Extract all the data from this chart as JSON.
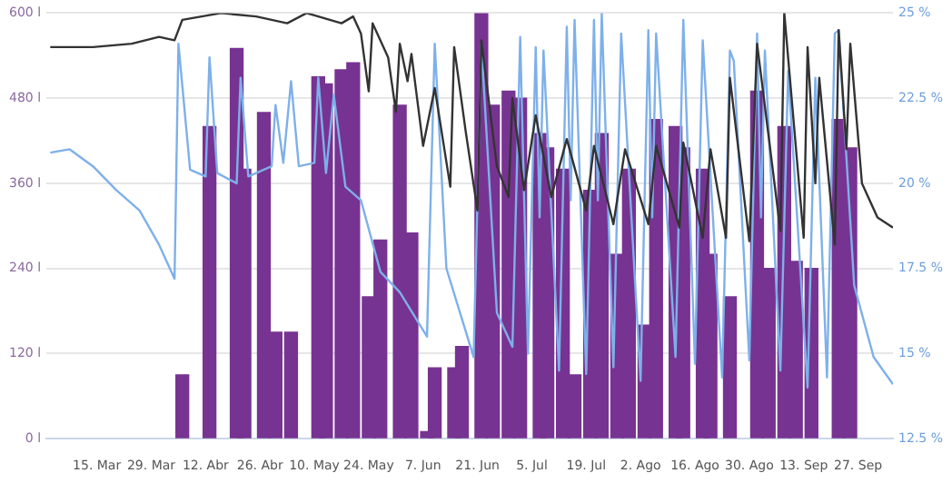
{
  "chart_data": {
    "type": "bar",
    "xlim": [
      "--03-02",
      "--10-06"
    ],
    "xticks": [
      {
        "value": "--03-15",
        "label": "15. Mar"
      },
      {
        "value": "--03-29",
        "label": "29. Mar"
      },
      {
        "value": "--04-12",
        "label": "12. Abr"
      },
      {
        "value": "--04-26",
        "label": "26. Abr"
      },
      {
        "value": "--05-10",
        "label": "10. May"
      },
      {
        "value": "--05-24",
        "label": "24. May"
      },
      {
        "value": "--06-07",
        "label": "7. Jun"
      },
      {
        "value": "--06-21",
        "label": "21. Jun"
      },
      {
        "value": "--07-05",
        "label": "5. Jul"
      },
      {
        "value": "--07-19",
        "label": "19. Jul"
      },
      {
        "value": "--08-02",
        "label": "2. Ago"
      },
      {
        "value": "--08-16",
        "label": "16. Ago"
      },
      {
        "value": "--08-30",
        "label": "30. Ago"
      },
      {
        "value": "--09-13",
        "label": "13. Sep"
      },
      {
        "value": "--09-27",
        "label": "27. Sep"
      }
    ],
    "ylim": [
      0,
      600
    ],
    "yticks": [
      {
        "value": 0,
        "label": "0 l"
      },
      {
        "value": 120,
        "label": "120 l"
      },
      {
        "value": 240,
        "label": "240 l"
      },
      {
        "value": 360,
        "label": "360 l"
      },
      {
        "value": 480,
        "label": "480 l"
      },
      {
        "value": 600,
        "label": "600 l"
      }
    ],
    "y2lim": [
      12.5,
      25
    ],
    "y2ticks": [
      {
        "value": 12.5,
        "label": "12.5 %"
      },
      {
        "value": 15,
        "label": "15 %"
      },
      {
        "value": 17.5,
        "label": "17.5 %"
      },
      {
        "value": 20,
        "label": "20 %"
      },
      {
        "value": 22.5,
        "label": "22.5 %"
      },
      {
        "value": 25,
        "label": "25 %"
      }
    ],
    "grid": "y",
    "legend": false,
    "marker": "none",
    "line_style": "solid",
    "series": [
      {
        "color": "#773391",
        "x": [
          "--04-06",
          "--04-13",
          "--04-20",
          "--04-22",
          "--04-27",
          "--04-30",
          "--05-04",
          "--05-11",
          "--05-13",
          "--05-17",
          "--05-20",
          "--05-24",
          "--05-27",
          "--06-01",
          "--06-04",
          "--06-08",
          "--06-10",
          "--06-15",
          "--06-17",
          "--06-22",
          "--06-25",
          "--06-29",
          "--07-02",
          "--07-07",
          "--07-09",
          "--07-13",
          "--07-16",
          "--07-20",
          "--07-23",
          "--07-27",
          "--07-30",
          "--08-03",
          "--08-06",
          "--08-11",
          "--08-13",
          "--08-18",
          "--08-20",
          "--08-25",
          "--09-01",
          "--09-04",
          "--09-08",
          "--09-11",
          "--09-15",
          "--09-22",
          "--09-25"
        ],
        "values": [
          90,
          440,
          550,
          380,
          460,
          150,
          150,
          510,
          500,
          520,
          530,
          200,
          280,
          470,
          290,
          10,
          100,
          100,
          130,
          600,
          470,
          490,
          480,
          430,
          410,
          380,
          90,
          350,
          430,
          260,
          380,
          160,
          450,
          440,
          410,
          380,
          260,
          200,
          490,
          240,
          440,
          250,
          240,
          450,
          410
        ]
      },
      {
        "type": "line",
        "axis": "y2",
        "color": "#333333",
        "x": [
          "--03-03",
          "--03-14",
          "--03-24",
          "--03-31",
          "--04-04",
          "--04-06",
          "--04-16",
          "--04-25",
          "--05-03",
          "--05-08",
          "--05-17",
          "--05-20",
          "--05-22",
          "--05-24",
          "--05-25",
          "--05-29",
          "--05-31",
          "--06-01",
          "--06-03",
          "--06-04",
          "--06-07",
          "--06-10",
          "--06-14",
          "--06-15",
          "--06-18",
          "--06-21",
          "--06-22",
          "--06-26",
          "--06-29",
          "--06-30",
          "--07-03",
          "--07-06",
          "--07-10",
          "--07-14",
          "--07-19",
          "--07-21",
          "--07-26",
          "--07-29",
          "--08-04",
          "--08-06",
          "--08-12",
          "--08-13",
          "--08-18",
          "--08-20",
          "--08-24",
          "--08-25",
          "--08-30",
          "--09-01",
          "--09-07",
          "--09-08",
          "--09-13",
          "--09-14",
          "--09-16",
          "--09-17",
          "--09-21",
          "--09-22",
          "--09-24",
          "--09-25",
          "--09-28",
          "--10-02",
          "--10-06"
        ],
        "values": [
          24.0,
          24.0,
          24.1,
          24.3,
          24.2,
          24.8,
          25.0,
          24.9,
          24.7,
          25.0,
          24.7,
          24.9,
          24.4,
          22.7,
          24.7,
          23.7,
          22.1,
          24.1,
          23.0,
          23.8,
          21.1,
          22.8,
          19.9,
          24.0,
          21.5,
          19.2,
          24.2,
          20.5,
          19.6,
          22.5,
          19.8,
          22.0,
          19.6,
          21.3,
          19.2,
          21.1,
          18.8,
          21.0,
          18.8,
          21.1,
          18.7,
          21.2,
          18.4,
          21.0,
          18.4,
          23.1,
          18.3,
          24.1,
          18.6,
          25.0,
          18.4,
          24.0,
          20.0,
          23.1,
          18.2,
          24.5,
          21.0,
          24.1,
          20.0,
          19.0,
          18.7
        ]
      },
      {
        "type": "line",
        "axis": "y2",
        "color": "#7eb0ea",
        "x": [
          "--03-03",
          "--03-08",
          "--03-14",
          "--03-20",
          "--03-26",
          "--03-31",
          "--04-04",
          "--04-05",
          "--04-08",
          "--04-12",
          "--04-13",
          "--04-15",
          "--04-20",
          "--04-21",
          "--04-23",
          "--04-29",
          "--04-30",
          "--05-02",
          "--05-04",
          "--05-06",
          "--05-10",
          "--05-11",
          "--05-13",
          "--05-15",
          "--05-18",
          "--05-22",
          "--05-27",
          "--06-01",
          "--06-08",
          "--06-10",
          "--06-13",
          "--06-20",
          "--06-22",
          "--06-26",
          "--06-30",
          "--07-02",
          "--07-04",
          "--07-06",
          "--07-07",
          "--07-08",
          "--07-12",
          "--07-14",
          "--07-15",
          "--07-16",
          "--07-19",
          "--07-21",
          "--07-22",
          "--07-23",
          "--07-26",
          "--07-28",
          "--08-02",
          "--08-04",
          "--08-05",
          "--08-06",
          "--08-11",
          "--08-13",
          "--08-16",
          "--08-18",
          "--08-23",
          "--08-25",
          "--08-26",
          "--08-30",
          "--09-01",
          "--09-02",
          "--09-03",
          "--09-07",
          "--09-09",
          "--09-14",
          "--09-16",
          "--09-19",
          "--09-21",
          "--09-22",
          "--09-26",
          "--10-01",
          "--10-06"
        ],
        "values": [
          20.9,
          21.0,
          20.5,
          19.8,
          19.2,
          18.2,
          17.2,
          24.1,
          20.4,
          20.2,
          23.7,
          20.3,
          20.0,
          23.1,
          20.2,
          20.5,
          22.3,
          20.6,
          23.0,
          20.5,
          20.6,
          23.1,
          20.3,
          22.6,
          19.9,
          19.5,
          17.4,
          16.8,
          15.5,
          24.1,
          17.5,
          14.9,
          24.1,
          16.2,
          15.2,
          24.3,
          15.0,
          24.0,
          19.0,
          23.9,
          14.5,
          24.6,
          19.5,
          24.8,
          14.4,
          24.8,
          19.5,
          25.0,
          14.6,
          24.4,
          14.2,
          24.5,
          19.0,
          24.4,
          14.9,
          24.8,
          14.7,
          24.2,
          14.3,
          23.9,
          23.6,
          14.8,
          24.4,
          19.0,
          23.9,
          14.5,
          23.3,
          14.0,
          23.1,
          14.3,
          24.4,
          24.5,
          17.0,
          14.9,
          14.1
        ]
      }
    ]
  }
}
